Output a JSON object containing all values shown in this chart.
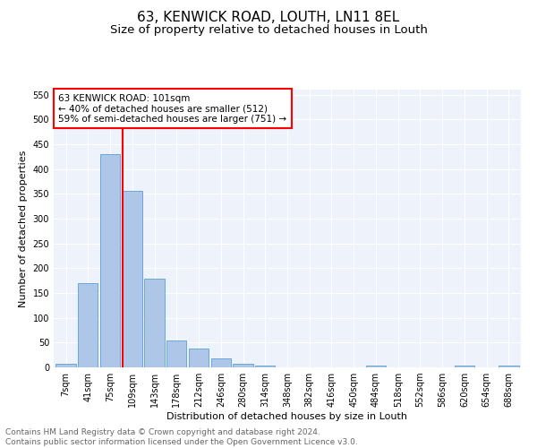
{
  "title": "63, KENWICK ROAD, LOUTH, LN11 8EL",
  "subtitle": "Size of property relative to detached houses in Louth",
  "xlabel": "Distribution of detached houses by size in Louth",
  "ylabel": "Number of detached properties",
  "bar_labels": [
    "7sqm",
    "41sqm",
    "75sqm",
    "109sqm",
    "143sqm",
    "178sqm",
    "212sqm",
    "246sqm",
    "280sqm",
    "314sqm",
    "348sqm",
    "382sqm",
    "416sqm",
    "450sqm",
    "484sqm",
    "518sqm",
    "552sqm",
    "586sqm",
    "620sqm",
    "654sqm",
    "688sqm"
  ],
  "bar_values": [
    8,
    170,
    430,
    355,
    178,
    55,
    38,
    18,
    8,
    3,
    0,
    0,
    0,
    0,
    4,
    0,
    0,
    0,
    3,
    0,
    4
  ],
  "bar_color": "#aec6e8",
  "bar_edge_color": "#5a9fd4",
  "vline_color": "red",
  "annotation_text": "63 KENWICK ROAD: 101sqm\n← 40% of detached houses are smaller (512)\n59% of semi-detached houses are larger (751) →",
  "annotation_box_color": "white",
  "annotation_box_edge_color": "red",
  "ylim": [
    0,
    560
  ],
  "yticks": [
    0,
    50,
    100,
    150,
    200,
    250,
    300,
    350,
    400,
    450,
    500,
    550
  ],
  "footer_text": "Contains HM Land Registry data © Crown copyright and database right 2024.\nContains public sector information licensed under the Open Government Licence v3.0.",
  "background_color": "#eef2fb",
  "grid_color": "#ffffff",
  "title_fontsize": 11,
  "subtitle_fontsize": 9.5,
  "axis_label_fontsize": 8,
  "tick_fontsize": 7,
  "annotation_fontsize": 7.5,
  "footer_fontsize": 6.5
}
